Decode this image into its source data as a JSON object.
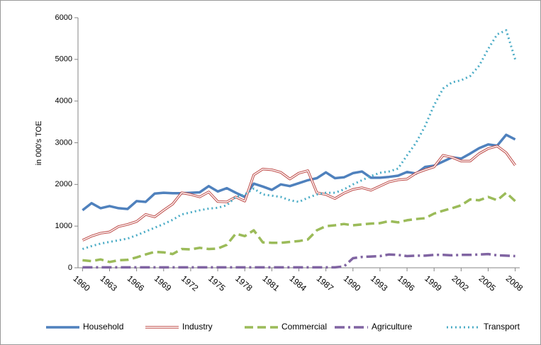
{
  "chart_data": {
    "type": "line",
    "y_label": "in 000's TOE",
    "x": [
      1960,
      1961,
      1962,
      1963,
      1964,
      1965,
      1966,
      1967,
      1968,
      1969,
      1970,
      1971,
      1972,
      1973,
      1974,
      1975,
      1976,
      1977,
      1978,
      1979,
      1980,
      1981,
      1982,
      1983,
      1984,
      1985,
      1986,
      1987,
      1988,
      1989,
      1990,
      1991,
      1992,
      1993,
      1994,
      1995,
      1996,
      1997,
      1998,
      1999,
      2000,
      2001,
      2002,
      2003,
      2004,
      2005,
      2006,
      2007,
      2008
    ],
    "xlim": [
      1959.5,
      2008.5
    ],
    "xticks": [
      1960,
      1963,
      1966,
      1969,
      1972,
      1975,
      1978,
      1981,
      1984,
      1987,
      1990,
      1993,
      1996,
      1999,
      2002,
      2005,
      2008
    ],
    "ylim": [
      0,
      6000
    ],
    "yticks": [
      0,
      1000,
      2000,
      3000,
      4000,
      5000,
      6000
    ],
    "grid": false,
    "legend": "bottom",
    "series": [
      {
        "name": "Household",
        "color": "#4f81bd",
        "style": "solid",
        "values": [
          1380,
          1550,
          1430,
          1480,
          1430,
          1410,
          1600,
          1580,
          1780,
          1800,
          1790,
          1790,
          1800,
          1810,
          1960,
          1830,
          1910,
          1800,
          1700,
          2020,
          1950,
          1870,
          2000,
          1960,
          2030,
          2100,
          2150,
          2290,
          2150,
          2170,
          2270,
          2310,
          2160,
          2160,
          2180,
          2210,
          2300,
          2260,
          2420,
          2450,
          2550,
          2650,
          2620,
          2740,
          2870,
          2960,
          2930,
          3190,
          3080
        ]
      },
      {
        "name": "Industry",
        "color": "#c0504d",
        "style": "double",
        "values": [
          660,
          760,
          830,
          860,
          990,
          1040,
          1110,
          1280,
          1220,
          1380,
          1530,
          1800,
          1760,
          1700,
          1820,
          1590,
          1580,
          1700,
          1600,
          2230,
          2370,
          2350,
          2290,
          2130,
          2270,
          2330,
          1800,
          1760,
          1660,
          1790,
          1880,
          1920,
          1860,
          1960,
          2060,
          2110,
          2130,
          2270,
          2350,
          2420,
          2700,
          2650,
          2560,
          2560,
          2740,
          2860,
          2920,
          2760,
          2460
        ]
      },
      {
        "name": "Commercial",
        "color": "#9bbb59",
        "style": "dashed",
        "values": [
          180,
          160,
          200,
          140,
          180,
          190,
          250,
          320,
          380,
          370,
          330,
          450,
          440,
          480,
          450,
          460,
          550,
          820,
          760,
          900,
          610,
          600,
          600,
          620,
          640,
          680,
          900,
          1000,
          1020,
          1050,
          1020,
          1040,
          1060,
          1070,
          1120,
          1090,
          1140,
          1170,
          1190,
          1300,
          1370,
          1430,
          1500,
          1640,
          1620,
          1700,
          1620,
          1800,
          1600
        ]
      },
      {
        "name": "Agriculture",
        "color": "#8064a2",
        "style": "dashdot",
        "values": [
          10,
          10,
          10,
          10,
          10,
          10,
          10,
          10,
          10,
          10,
          10,
          10,
          10,
          10,
          10,
          10,
          10,
          10,
          10,
          10,
          10,
          10,
          10,
          10,
          10,
          10,
          10,
          10,
          10,
          30,
          230,
          260,
          270,
          280,
          320,
          310,
          280,
          290,
          290,
          310,
          310,
          300,
          310,
          310,
          320,
          330,
          300,
          290,
          280
        ]
      },
      {
        "name": "Transport",
        "color": "#4bacc6",
        "style": "dotted",
        "values": [
          450,
          520,
          580,
          620,
          660,
          700,
          780,
          870,
          960,
          1050,
          1150,
          1280,
          1330,
          1380,
          1420,
          1440,
          1500,
          1700,
          1760,
          1900,
          1760,
          1730,
          1700,
          1620,
          1580,
          1680,
          1760,
          1800,
          1800,
          1880,
          2000,
          2100,
          2200,
          2280,
          2310,
          2380,
          2700,
          3000,
          3400,
          3900,
          4300,
          4450,
          4500,
          4600,
          4850,
          5250,
          5600,
          5700,
          5000
        ]
      }
    ]
  }
}
